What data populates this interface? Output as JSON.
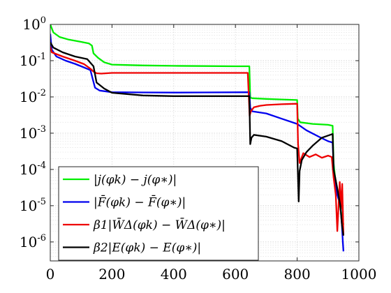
{
  "chart_data": {
    "type": "line",
    "title": "",
    "xlabel": "",
    "ylabel": "",
    "xlim": [
      0,
      1000
    ],
    "ylim": [
      3e-07,
      1
    ],
    "yscale": "log",
    "grid": true,
    "legend_position": "bottom-left",
    "xticks": [
      0,
      200,
      400,
      600,
      800,
      1000
    ],
    "xtick_labels": [
      "0",
      "200",
      "400",
      "600",
      "800",
      "1000"
    ],
    "yticks": [
      1e-06,
      1e-05,
      0.0001,
      0.001,
      0.01,
      0.1,
      1
    ],
    "ytick_labels": [
      {
        "base": "10",
        "exp": "-6"
      },
      {
        "base": "10",
        "exp": "-5"
      },
      {
        "base": "10",
        "exp": "-4"
      },
      {
        "base": "10",
        "exp": "-3"
      },
      {
        "base": "10",
        "exp": "-2"
      },
      {
        "base": "10",
        "exp": "-1"
      },
      {
        "base": "10",
        "exp": "0"
      }
    ],
    "series": [
      {
        "name": "|j(φk) − j(φ∗)|",
        "color": "#00ee00",
        "x": [
          0,
          10,
          30,
          60,
          100,
          125,
          135,
          140,
          155,
          175,
          200,
          300,
          400,
          500,
          600,
          645,
          648,
          655,
          700,
          750,
          800,
          802,
          810,
          850,
          900,
          915,
          918,
          925,
          935,
          945,
          950
        ],
        "y": [
          1.0,
          0.6,
          0.45,
          0.38,
          0.33,
          0.3,
          0.26,
          0.16,
          0.12,
          0.09,
          0.078,
          0.074,
          0.072,
          0.071,
          0.07,
          0.07,
          0.0095,
          0.0092,
          0.0088,
          0.0085,
          0.0082,
          0.0025,
          0.002,
          0.0018,
          0.0017,
          0.0016,
          0.00015,
          4e-05,
          1.5e-05,
          5e-06,
          3e-06
        ]
      },
      {
        "name": "|F̄(φk) − F̄(φ∗)|",
        "color": "#0000ee",
        "x": [
          0,
          2,
          5,
          20,
          50,
          80,
          100,
          130,
          138,
          145,
          160,
          200,
          300,
          400,
          500,
          600,
          645,
          648,
          655,
          700,
          750,
          800,
          830,
          870,
          900,
          915,
          920,
          930,
          940,
          945,
          948,
          950
        ],
        "y": [
          0.55,
          0.35,
          0.2,
          0.13,
          0.1,
          0.082,
          0.07,
          0.055,
          0.03,
          0.018,
          0.015,
          0.0135,
          0.0133,
          0.0132,
          0.0133,
          0.0134,
          0.0135,
          0.005,
          0.004,
          0.0035,
          0.0025,
          0.0018,
          0.0012,
          0.0008,
          0.0006,
          0.00055,
          5e-05,
          2e-05,
          1e-05,
          3e-06,
          1e-06,
          5.5e-07
        ]
      },
      {
        "name": "β1|W̄Δ(φk) − W̄Δ(φ∗)|",
        "color": "#ee0000",
        "x": [
          0,
          5,
          40,
          80,
          110,
          130,
          140,
          150,
          165,
          200,
          300,
          400,
          500,
          600,
          640,
          646,
          650,
          660,
          680,
          700,
          750,
          800,
          803,
          808,
          820,
          840,
          860,
          880,
          900,
          912,
          918,
          925,
          930,
          938,
          942,
          946,
          950
        ],
        "y": [
          0.25,
          0.17,
          0.13,
          0.1,
          0.08,
          0.06,
          0.05,
          0.045,
          0.044,
          0.046,
          0.046,
          0.046,
          0.046,
          0.046,
          0.046,
          0.003,
          0.004,
          0.0052,
          0.0057,
          0.006,
          0.0063,
          0.0065,
          0.0005,
          0.00015,
          0.00028,
          0.00022,
          0.00026,
          0.00021,
          0.00024,
          0.00022,
          6e-05,
          2e-05,
          2e-06,
          4.5e-05,
          8e-06,
          4e-05,
          1.5e-06
        ]
      },
      {
        "name": "β2|E(φk) − E(φ∗)|",
        "color": "#000000",
        "x": [
          0,
          10,
          40,
          80,
          120,
          140,
          150,
          175,
          200,
          300,
          400,
          500,
          600,
          645,
          648,
          652,
          660,
          700,
          750,
          790,
          800,
          805,
          808,
          815,
          830,
          850,
          880,
          915,
          918,
          930,
          940,
          945,
          950
        ],
        "y": [
          0.32,
          0.23,
          0.17,
          0.13,
          0.11,
          0.07,
          0.025,
          0.017,
          0.013,
          0.011,
          0.0105,
          0.0105,
          0.0105,
          0.0105,
          0.0005,
          0.00075,
          0.0009,
          0.0008,
          0.0006,
          0.0004,
          0.00038,
          1.3e-05,
          9e-05,
          0.00018,
          0.0003,
          0.00045,
          0.00075,
          0.00095,
          0.0001,
          3e-05,
          1e-05,
          3e-06,
          1.5e-06
        ]
      }
    ],
    "legend": [
      {
        "series": 0,
        "text": "|j(φk) − j(φ∗)|"
      },
      {
        "series": 1,
        "text": "|F̄(φk) − F̄(φ∗)|"
      },
      {
        "series": 2,
        "text": "β1|W̄Δ(φk) − W̄Δ(φ∗)|"
      },
      {
        "series": 3,
        "text": "β2|E(φk) − E(φ∗)|"
      }
    ]
  }
}
